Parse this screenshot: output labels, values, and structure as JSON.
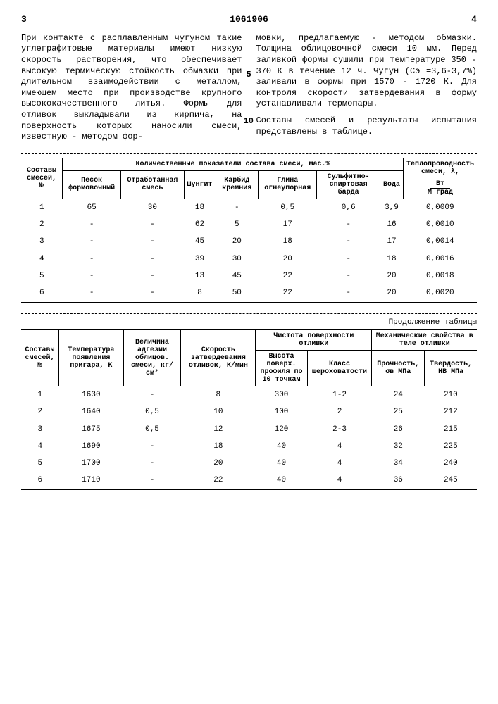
{
  "header": {
    "page_left": "3",
    "doc_number": "1061906",
    "page_right": "4"
  },
  "paragraph": {
    "left": "При контакте с расплавленным чугуном такие углеграфитовые материалы имеют низкую скорость растворения, что обеспечивает высокую термическую стойкость обмазки при длительном взаимодействии с металлом, имеющем место при производстве крупного высококачественного литья. Формы для отливок выкладывали из кирпича, на поверхность которых наносили смеси, известную - методом фор-",
    "right": "мовки, предлагаемую - методом обмазки. Толщина облицовочной смеси 10 мм. Перед заливкой формы сушили при температуре 350 - 370 К в течение 12 ч. Чугун (Cэ =3,6-3,7%) заливали в формы при 1570 - 1720 К. Для контроля скорости затвердевания в форму устанавливали термопары.",
    "right2": "Составы смесей и результаты испытания представлены в таблице.",
    "marker5": "5",
    "marker10": "10"
  },
  "table1": {
    "h_rowlabel": "Составы смесей, №",
    "h_group": "Количественные показатели состава смеси, мас.%",
    "h_lambda": "Теплопроводность смеси, λ,",
    "h_lambda_unit": "Вт",
    "h_lambda_unit2": "М град",
    "cols": [
      "Песок формовочный",
      "Отработанная смесь",
      "Шунгит",
      "Карбид кремния",
      "Глина огнеупорная",
      "Сульфитно-спиртовая барда",
      "Вода"
    ],
    "rows": [
      {
        "n": "1",
        "c": [
          "65",
          "30",
          "18",
          "-",
          "0,5",
          "0,6",
          "3,9"
        ],
        "l": "0,0009"
      },
      {
        "n": "2",
        "c": [
          "-",
          "-",
          "62",
          "5",
          "17",
          "-",
          "16"
        ],
        "l": "0,0010"
      },
      {
        "n": "3",
        "c": [
          "-",
          "-",
          "45",
          "20",
          "18",
          "-",
          "17"
        ],
        "l": "0,0014"
      },
      {
        "n": "4",
        "c": [
          "-",
          "-",
          "39",
          "30",
          "20",
          "-",
          "18"
        ],
        "l": "0,0016"
      },
      {
        "n": "5",
        "c": [
          "-",
          "-",
          "13",
          "45",
          "22",
          "-",
          "20"
        ],
        "l": "0,0018"
      },
      {
        "n": "6",
        "c": [
          "-",
          "-",
          "8",
          "50",
          "22",
          "-",
          "20"
        ],
        "l": "0,0020"
      }
    ]
  },
  "table2": {
    "cont": "Продолжение таблицы",
    "h_rowlabel": "Составы смесей, №",
    "h_temp": "Температура появления пригара, К",
    "h_adh": "Величина адгезии облицов. смеси, кг/см²",
    "h_speed": "Скорость затвердевания отливок, К/мин",
    "h_purity": "Чистота поверхности отливки",
    "h_mech": "Механические свойства в теле отливки",
    "h_height": "Высота поверх. профиля по 10 точкам",
    "h_class": "Класс шероховатости",
    "h_strength": "Прочность, σв МПа",
    "h_hard": "Твердость, НВ МПа",
    "rows": [
      {
        "n": "1",
        "c": [
          "1630",
          "-",
          "8",
          "300",
          "1-2",
          "24",
          "210"
        ]
      },
      {
        "n": "2",
        "c": [
          "1640",
          "0,5",
          "10",
          "100",
          "2",
          "25",
          "212"
        ]
      },
      {
        "n": "3",
        "c": [
          "1675",
          "0,5",
          "12",
          "120",
          "2-3",
          "26",
          "215"
        ]
      },
      {
        "n": "4",
        "c": [
          "1690",
          "-",
          "18",
          "40",
          "4",
          "32",
          "225"
        ]
      },
      {
        "n": "5",
        "c": [
          "1700",
          "-",
          "20",
          "40",
          "4",
          "34",
          "240"
        ]
      },
      {
        "n": "6",
        "c": [
          "1710",
          "-",
          "22",
          "40",
          "4",
          "36",
          "245"
        ]
      }
    ]
  }
}
